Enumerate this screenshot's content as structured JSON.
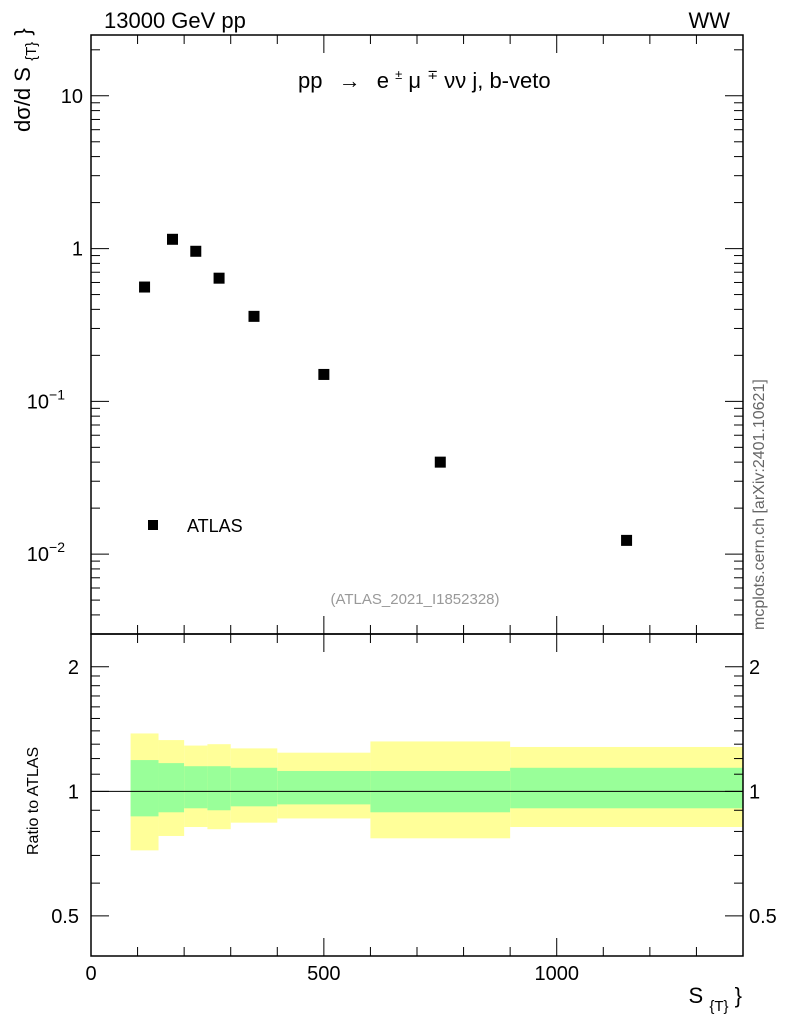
{
  "header": {
    "energy_label": "13000 GeV pp",
    "process_tag": "WW",
    "analysis_id": "(ATLAS_2021_I1852328)",
    "side_credit": "mcplots.cern.ch [arXiv:2401.10621]"
  },
  "chart_data": [
    {
      "type": "scatter",
      "panel": "main",
      "title": "pp  →  e±μ∓νν j, b-veto",
      "title_parts": {
        "prefix": "pp",
        "arrow": "→",
        "e": "e",
        "pm": "±",
        "mu": "μ",
        "mp": "∓",
        "rest": "νν j, b-veto"
      },
      "ylabel": "dσ/d S",
      "ylabel_sub": "{T}",
      "ylabel_suffix": "}",
      "y_scale": "log",
      "ylim": [
        0.003,
        25
      ],
      "xlim": [
        0,
        1400
      ],
      "y_ticks": [
        {
          "value": 10,
          "label": "10"
        },
        {
          "value": 1,
          "label": "1"
        },
        {
          "value": 0.1,
          "base": "10",
          "exp": "−1"
        },
        {
          "value": 0.01,
          "base": "10",
          "exp": "−2"
        }
      ],
      "legend": {
        "position": "bottom-left",
        "entries": [
          "ATLAS"
        ]
      },
      "series": [
        {
          "name": "ATLAS",
          "marker": "square",
          "color": "#000000",
          "x": [
            115,
            175,
            225,
            275,
            350,
            500,
            750,
            1150
          ],
          "y": [
            0.56,
            1.15,
            0.96,
            0.64,
            0.36,
            0.15,
            0.04,
            0.0123
          ]
        }
      ]
    },
    {
      "type": "area",
      "panel": "ratio",
      "ylabel": "Ratio to ATLAS",
      "xlabel": "S",
      "xlabel_sub": "{T}",
      "xlabel_suffix": "}",
      "y_scale": "log",
      "ylim": [
        0.4,
        2.4
      ],
      "xlim": [
        0,
        1400
      ],
      "x_ticks": [
        {
          "value": 0,
          "label": "0"
        },
        {
          "value": 500,
          "label": "500"
        },
        {
          "value": 1000,
          "label": "1000"
        }
      ],
      "y_ticks": [
        {
          "value": 2,
          "label": "2"
        },
        {
          "value": 1,
          "label": "1"
        },
        {
          "value": 0.5,
          "label": "0.5"
        }
      ],
      "reference_line": 1,
      "bands": {
        "colors": {
          "outer": "#ffff99",
          "inner": "#99ff99"
        },
        "bins": [
          {
            "x0": 85,
            "x1": 145,
            "outer": [
              0.72,
              1.38
            ],
            "inner": [
              0.87,
              1.19
            ]
          },
          {
            "x0": 145,
            "x1": 200,
            "outer": [
              0.78,
              1.33
            ],
            "inner": [
              0.89,
              1.17
            ]
          },
          {
            "x0": 200,
            "x1": 250,
            "outer": [
              0.82,
              1.29
            ],
            "inner": [
              0.91,
              1.15
            ]
          },
          {
            "x0": 250,
            "x1": 300,
            "outer": [
              0.81,
              1.3
            ],
            "inner": [
              0.9,
              1.15
            ]
          },
          {
            "x0": 300,
            "x1": 400,
            "outer": [
              0.84,
              1.27
            ],
            "inner": [
              0.92,
              1.14
            ]
          },
          {
            "x0": 400,
            "x1": 600,
            "outer": [
              0.86,
              1.24
            ],
            "inner": [
              0.93,
              1.12
            ]
          },
          {
            "x0": 600,
            "x1": 900,
            "outer": [
              0.77,
              1.32
            ],
            "inner": [
              0.89,
              1.12
            ]
          },
          {
            "x0": 900,
            "x1": 1400,
            "outer": [
              0.82,
              1.28
            ],
            "inner": [
              0.91,
              1.14
            ]
          }
        ]
      }
    }
  ]
}
